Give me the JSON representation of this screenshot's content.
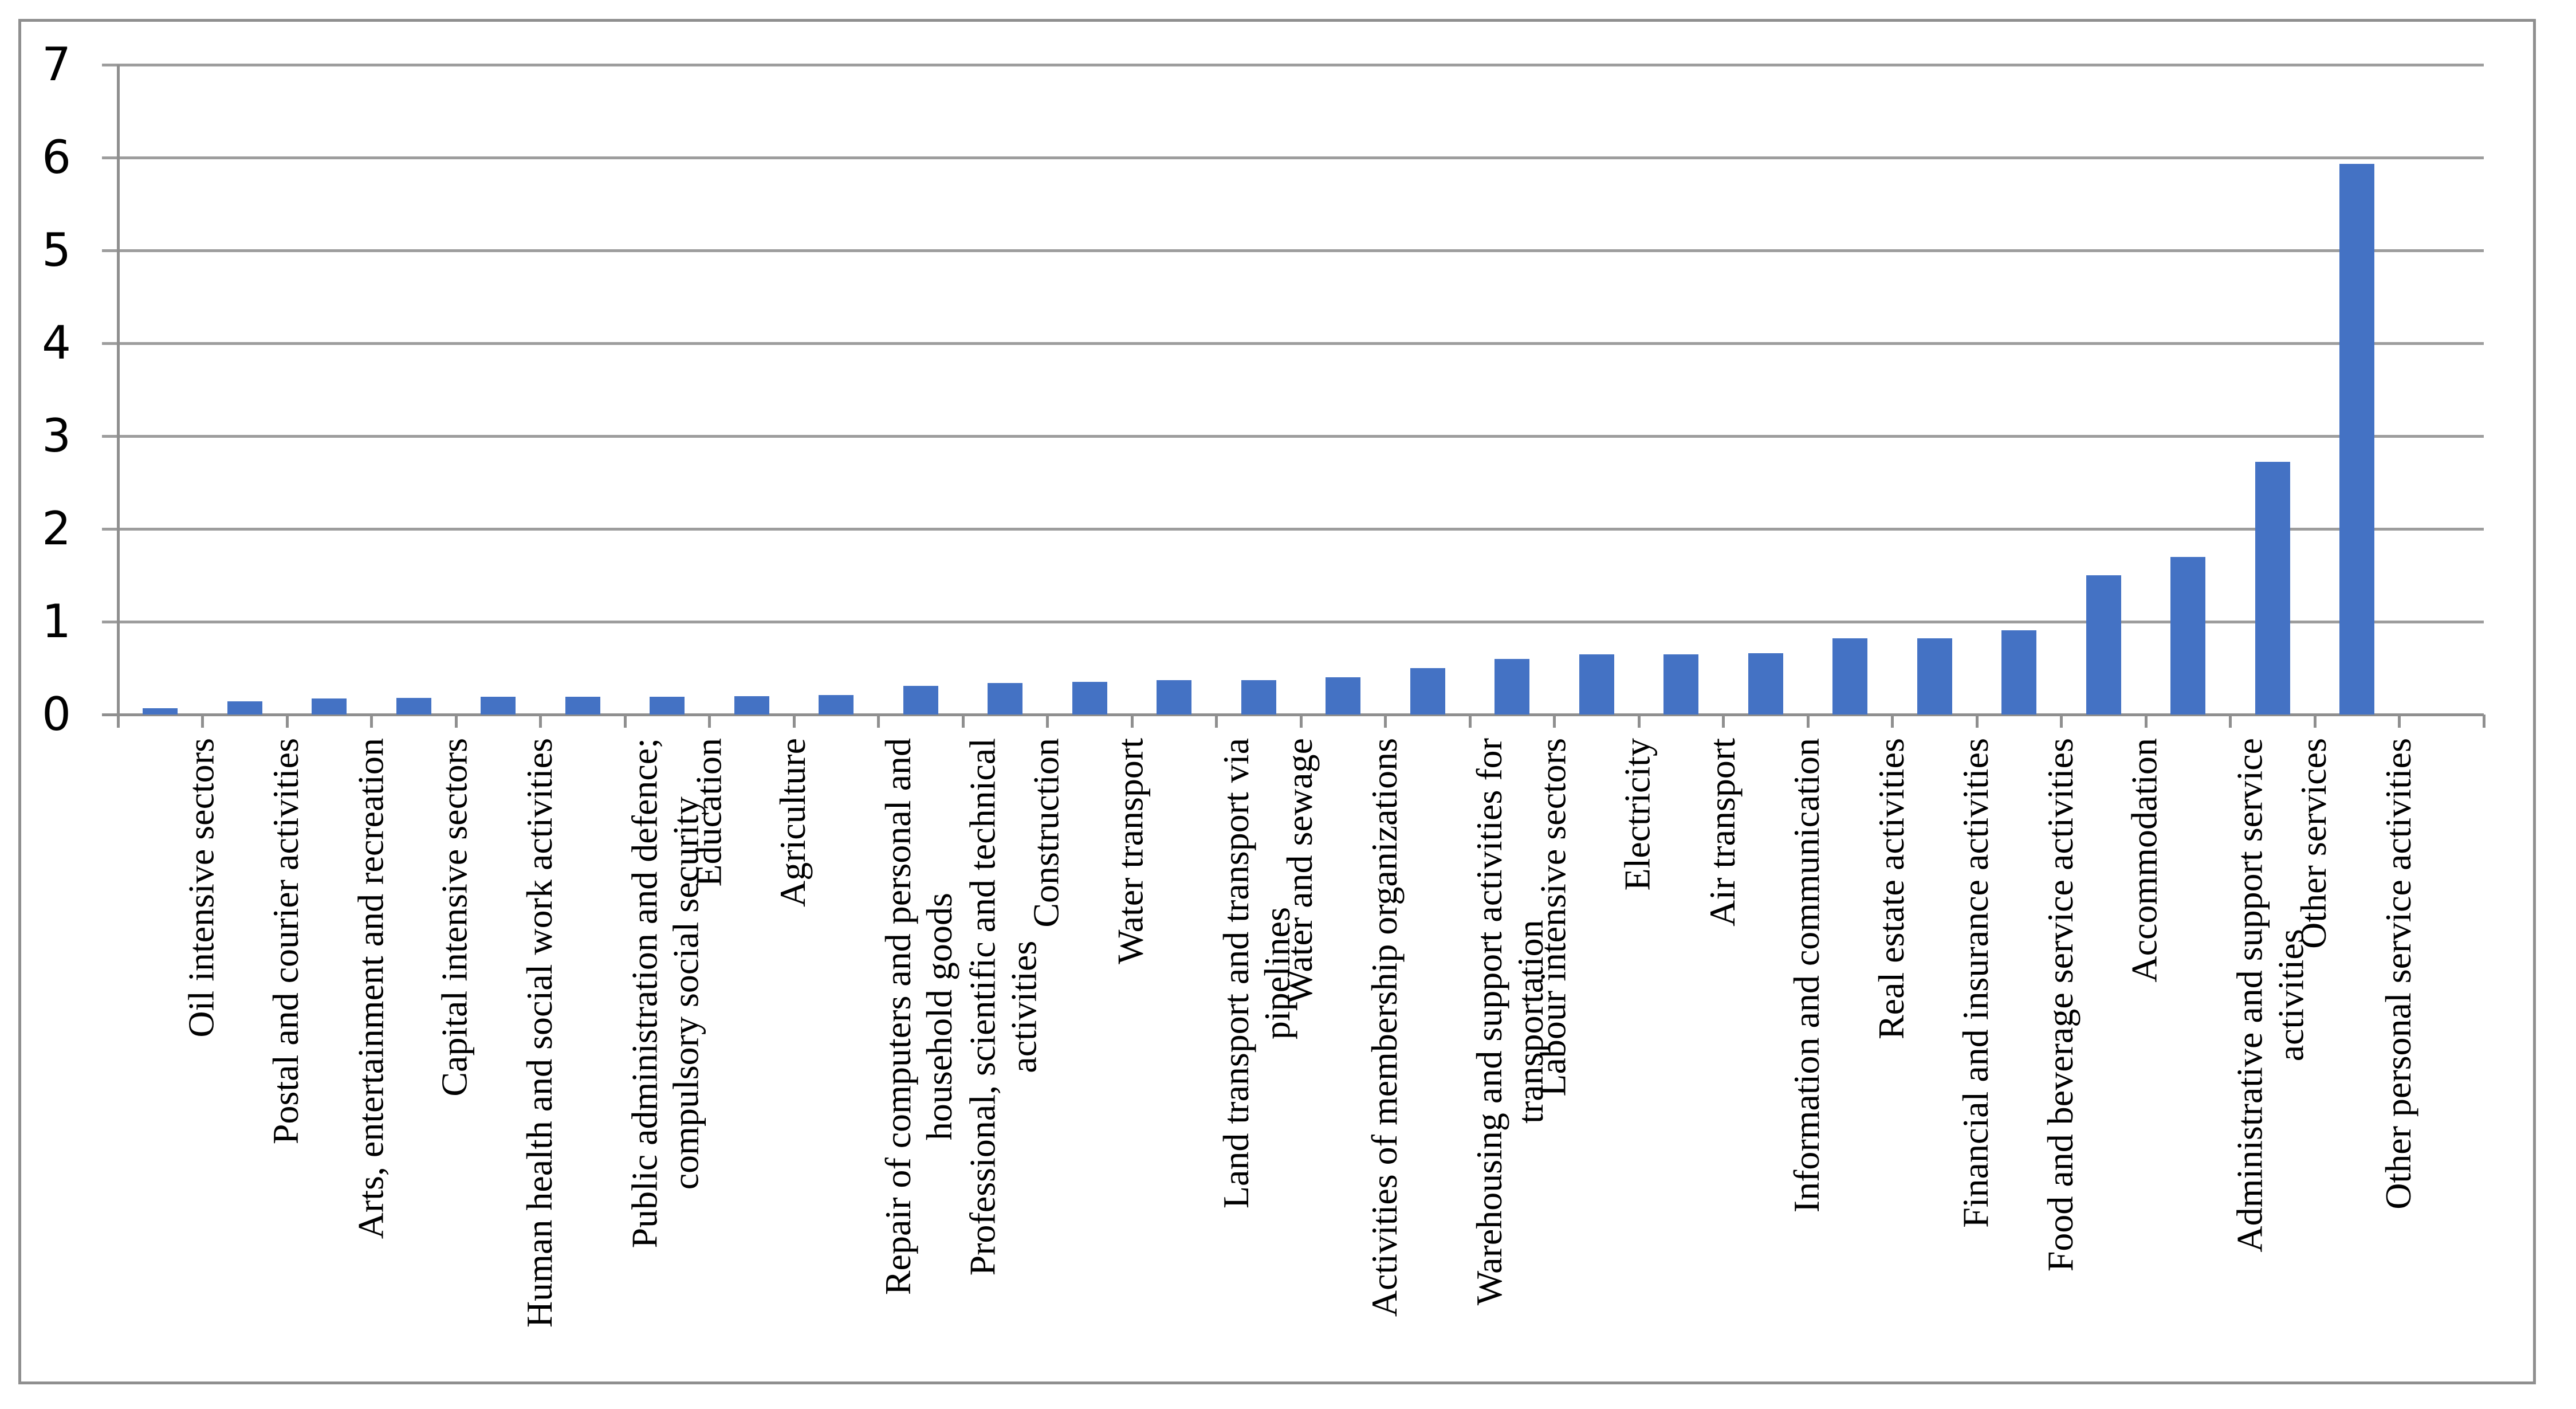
{
  "chart_data": {
    "type": "bar",
    "title": "",
    "xlabel": "",
    "ylabel": "",
    "ylim": [
      0,
      7
    ],
    "yticks": [
      0,
      1,
      2,
      3,
      4,
      5,
      6,
      7
    ],
    "grid": "horizontal",
    "legend": "none",
    "bar_color": "#4472C4",
    "axis_color": "#8f8f8f",
    "gridline_color": "#9d9d9d",
    "categories": [
      "Oil intensive sectors",
      "Postal and courier activities",
      "Arts, entertainment and recreation",
      "Capital intensive sectors",
      "Human health and social work activities",
      "Public administration and defence; compulsory social security",
      "Education",
      "Agriculture",
      "Repair of computers and personal and household goods",
      "Professional, scientific and technical activities",
      "Construction",
      "Water transport",
      "Land transport and transport via pipelines",
      "Water and sewage",
      "Activities of membership organizations",
      "Warehousing and support activities for transportation",
      "Labour intensive sectors",
      "Electricity",
      "Air transport",
      "Information and communication",
      "Real estate activities",
      "Financial and insurance activities",
      "Food and beverage service activities",
      "Accommodation",
      "Administrative and support service activities",
      "Other services",
      "Other personal service activities"
    ],
    "values": [
      0.07,
      0.14,
      0.17,
      0.18,
      0.19,
      0.19,
      0.19,
      0.2,
      0.21,
      0.31,
      0.34,
      0.35,
      0.37,
      0.37,
      0.4,
      0.5,
      0.6,
      0.65,
      0.65,
      0.66,
      0.82,
      0.82,
      0.91,
      1.5,
      1.7,
      2.72,
      5.93
    ],
    "label_lines": [
      [
        "Oil intensive sectors"
      ],
      [
        "Postal and courier activities"
      ],
      [
        "Arts, entertainment and recreation"
      ],
      [
        "Capital intensive sectors"
      ],
      [
        "Human health and social work activities"
      ],
      [
        "Public administration and defence;",
        "compulsory social security"
      ],
      [
        "Education"
      ],
      [
        "Agriculture"
      ],
      [
        "Repair of computers and personal and",
        "household goods"
      ],
      [
        "Professional, scientific and technical",
        "activities"
      ],
      [
        "Construction"
      ],
      [
        "Water transport"
      ],
      [
        "Land transport and transport via",
        "pipelines"
      ],
      [
        "Water and sewage"
      ],
      [
        "Activities of membership organizations"
      ],
      [
        "Warehousing and support activities for",
        "transportation"
      ],
      [
        "Labour intensive sectors"
      ],
      [
        "Electricity"
      ],
      [
        "Air transport"
      ],
      [
        "Information and communication"
      ],
      [
        "Real estate activities"
      ],
      [
        "Financial and insurance activities"
      ],
      [
        "Food and beverage service activities"
      ],
      [
        "Accommodation"
      ],
      [
        "Administrative and support service",
        "activities"
      ],
      [
        "Other services"
      ],
      [
        "Other personal service activities"
      ]
    ]
  }
}
